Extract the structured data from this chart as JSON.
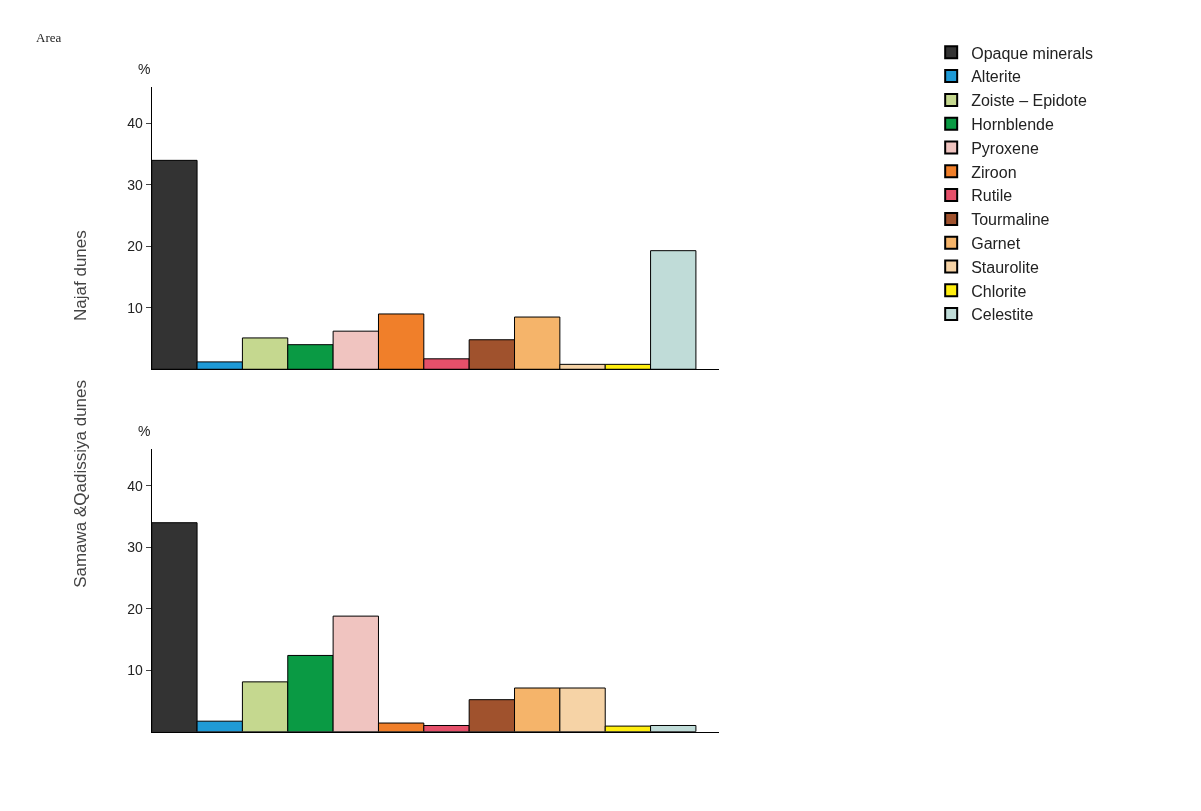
{
  "chart_data": [
    {
      "type": "bar",
      "title": "Najaf dunes",
      "ylabel": "%",
      "annotations": [
        "Area"
      ],
      "categories": [
        null,
        null,
        null,
        null,
        null,
        null,
        null,
        null,
        null,
        null,
        null,
        null
      ],
      "ylim": [
        0,
        46
      ],
      "yticks": [
        10,
        20,
        30,
        40
      ],
      "legend": "right",
      "series": [
        {
          "name": "Opaque minerals",
          "color": "#333333",
          "values": [
            34,
            null,
            null,
            null,
            null,
            null,
            null,
            null,
            null,
            null,
            null,
            null
          ]
        },
        {
          "name": "Alterite",
          "color": "#1f9ad6",
          "values": [
            null,
            1.2,
            null,
            null,
            null,
            null,
            null,
            null,
            null,
            null,
            null,
            null
          ]
        },
        {
          "name": "Zoiste – Epidote",
          "color": "#c5d88f",
          "values": [
            null,
            null,
            5.1,
            null,
            null,
            null,
            null,
            null,
            null,
            null,
            null,
            null
          ]
        },
        {
          "name": "Hornblende",
          "color": "#0a9a44",
          "values": [
            null,
            null,
            null,
            4,
            null,
            null,
            null,
            null,
            null,
            null,
            null,
            null
          ]
        },
        {
          "name": "Pyroxene",
          "color": "#f0c4c0",
          "values": [
            null,
            null,
            null,
            null,
            6.2,
            null,
            null,
            null,
            null,
            null,
            null,
            null
          ]
        },
        {
          "name": "Ziroon",
          "color": "#f07f2a",
          "values": [
            null,
            null,
            null,
            null,
            null,
            9,
            null,
            null,
            null,
            null,
            null,
            null
          ]
        },
        {
          "name": "Rutile",
          "color": "#e5506a",
          "values": [
            null,
            null,
            null,
            null,
            null,
            null,
            1.7,
            null,
            null,
            null,
            null,
            null
          ]
        },
        {
          "name": "Tourmaline",
          "color": "#a0522d",
          "values": [
            null,
            null,
            null,
            null,
            null,
            null,
            null,
            4.8,
            null,
            null,
            null,
            null
          ]
        },
        {
          "name": "Garnet",
          "color": "#f5b46a",
          "values": [
            null,
            null,
            null,
            null,
            null,
            null,
            null,
            null,
            8.5,
            null,
            null,
            null
          ]
        },
        {
          "name": "Staurolite",
          "color": "#f6d3a6",
          "values": [
            null,
            null,
            null,
            null,
            null,
            null,
            null,
            null,
            null,
            0.8,
            null,
            null
          ]
        },
        {
          "name": "Chlorite",
          "color": "#ffee10",
          "values": [
            null,
            null,
            null,
            null,
            null,
            null,
            null,
            null,
            null,
            null,
            0.8,
            null
          ]
        },
        {
          "name": "Celestite",
          "color": "#c0dcd8",
          "values": [
            null,
            null,
            null,
            null,
            null,
            null,
            null,
            null,
            null,
            null,
            null,
            19.3
          ]
        }
      ]
    },
    {
      "type": "bar",
      "title": "Samawa &Qadissiya dunes",
      "ylabel": "%",
      "categories": [
        null,
        null,
        null,
        null,
        null,
        null,
        null,
        null,
        null,
        null,
        null,
        null
      ],
      "ylim": [
        0,
        46
      ],
      "yticks": [
        10,
        20,
        30,
        40
      ],
      "series": [
        {
          "color": "#333333",
          "values": [
            34,
            null,
            null,
            null,
            null,
            null,
            null,
            null,
            null,
            null,
            null,
            null
          ]
        },
        {
          "color": "#1f9ad6",
          "values": [
            null,
            1.7,
            null,
            null,
            null,
            null,
            null,
            null,
            null,
            null,
            null,
            null
          ]
        },
        {
          "color": "#c5d88f",
          "values": [
            null,
            null,
            8.1,
            null,
            null,
            null,
            null,
            null,
            null,
            null,
            null,
            null
          ]
        },
        {
          "color": "#0a9a44",
          "values": [
            null,
            null,
            null,
            12.4,
            null,
            null,
            null,
            null,
            null,
            null,
            null,
            null
          ]
        },
        {
          "color": "#f0c4c0",
          "values": [
            null,
            null,
            null,
            null,
            18.8,
            null,
            null,
            null,
            null,
            null,
            null,
            null
          ]
        },
        {
          "color": "#f07f2a",
          "values": [
            null,
            null,
            null,
            null,
            null,
            1.4,
            null,
            null,
            null,
            null,
            null,
            null
          ]
        },
        {
          "color": "#e5506a",
          "values": [
            null,
            null,
            null,
            null,
            null,
            null,
            1,
            null,
            null,
            null,
            null,
            null
          ]
        },
        {
          "color": "#a0522d",
          "values": [
            null,
            null,
            null,
            null,
            null,
            null,
            null,
            5.2,
            null,
            null,
            null,
            null
          ]
        },
        {
          "color": "#f5b46a",
          "values": [
            null,
            null,
            null,
            null,
            null,
            null,
            null,
            null,
            7.1,
            null,
            null,
            null
          ]
        },
        {
          "color": "#f6d3a6",
          "values": [
            null,
            null,
            null,
            null,
            null,
            null,
            null,
            null,
            null,
            7.1,
            null,
            null
          ]
        },
        {
          "color": "#ffee10",
          "values": [
            null,
            null,
            null,
            null,
            null,
            null,
            null,
            null,
            null,
            null,
            0.9,
            null
          ]
        },
        {
          "color": "#c0dcd8",
          "values": [
            null,
            null,
            null,
            null,
            null,
            null,
            null,
            null,
            null,
            null,
            null,
            1
          ]
        }
      ]
    }
  ]
}
